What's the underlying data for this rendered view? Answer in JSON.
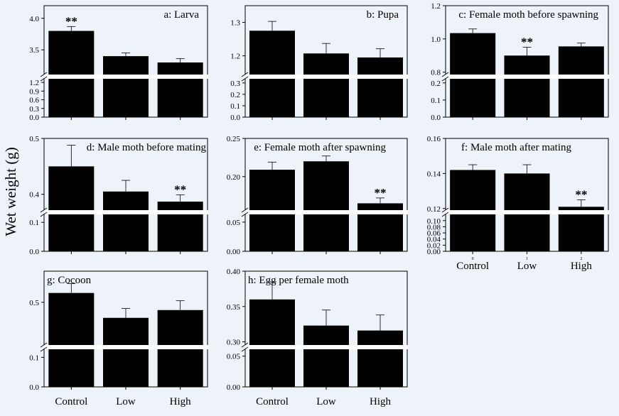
{
  "colors": {
    "background": "#eef2f9",
    "bar": "#000000",
    "break": "#ffffff"
  },
  "figure": {
    "ylabel": "Wet weight (g)"
  },
  "chart_data": [
    {
      "type": "bar",
      "title": "a: Larva",
      "categories": [
        "Control",
        "Low",
        "High"
      ],
      "values": [
        3.8,
        3.4,
        3.3
      ],
      "errors": [
        0.07,
        0.05,
        0.06
      ],
      "significance": [
        "**",
        "",
        ""
      ],
      "upper": {
        "ylim": [
          3.12,
          4.2
        ],
        "ticks": [
          3.5,
          4.0
        ],
        "tick_labels": [
          "3.5",
          "4.0"
        ]
      },
      "lower": {
        "ylim": [
          0,
          1.3
        ],
        "ticks": [
          0,
          0.3,
          0.6,
          0.9,
          1.2
        ],
        "tick_labels": [
          "0.0",
          "0.3",
          "0.6",
          "0.9",
          "1.2"
        ]
      },
      "show_category_labels": false
    },
    {
      "type": "bar",
      "title": "b: Pupa",
      "categories": [
        "Control",
        "Low",
        "High"
      ],
      "values": [
        1.275,
        1.207,
        1.195
      ],
      "errors": [
        0.028,
        0.03,
        0.026
      ],
      "significance": [
        "",
        "",
        ""
      ],
      "upper": {
        "ylim": [
          1.146,
          1.35
        ],
        "ticks": [
          1.2,
          1.3
        ],
        "tick_labels": [
          "1.2",
          "1.3"
        ]
      },
      "lower": {
        "ylim": [
          0,
          0.33
        ],
        "ticks": [
          0,
          0.1,
          0.2,
          0.3
        ],
        "tick_labels": [
          "0.0",
          "0.1",
          "0.2",
          "0.3"
        ]
      },
      "show_category_labels": false
    },
    {
      "type": "bar",
      "title": "c: Female moth before spawning",
      "categories": [
        "Control",
        "Low",
        "High"
      ],
      "values": [
        1.035,
        0.9,
        0.955
      ],
      "errors": [
        0.025,
        0.05,
        0.02
      ],
      "significance": [
        "",
        "**",
        ""
      ],
      "upper": {
        "ylim": [
          0.79,
          1.2
        ],
        "ticks": [
          0.8,
          1.0,
          1.2
        ],
        "tick_labels": [
          "0.8",
          "1.0",
          "1.2"
        ]
      },
      "lower": {
        "ylim": [
          0,
          0.22
        ],
        "ticks": [
          0,
          0.1,
          0.2
        ],
        "tick_labels": [
          "0.0",
          "0.1",
          "0.2"
        ]
      },
      "show_category_labels": false
    },
    {
      "type": "bar",
      "title": "d: Male moth before mating",
      "categories": [
        "Control",
        "Low",
        "High"
      ],
      "values": [
        0.45,
        0.405,
        0.387
      ],
      "errors": [
        0.038,
        0.02,
        0.012
      ],
      "significance": [
        "",
        "",
        "**"
      ],
      "upper": {
        "ylim": [
          0.373,
          0.5
        ],
        "ticks": [
          0.4,
          0.5
        ],
        "tick_labels": [
          "0.4",
          "0.5"
        ]
      },
      "lower": {
        "ylim": [
          0,
          0.125
        ],
        "ticks": [
          0,
          0.1
        ],
        "tick_labels": [
          "0.0",
          "0.1"
        ]
      },
      "show_category_labels": false
    },
    {
      "type": "bar",
      "title": "e: Female moth after spawning",
      "categories": [
        "Control",
        "Low",
        "High"
      ],
      "values": [
        0.209,
        0.22,
        0.165
      ],
      "errors": [
        0.01,
        0.007,
        0.007
      ],
      "significance": [
        "",
        "",
        "**"
      ],
      "upper": {
        "ylim": [
          0.157,
          0.25
        ],
        "ticks": [
          0.2,
          0.25
        ],
        "tick_labels": [
          "0.20",
          "0.25"
        ]
      },
      "lower": {
        "ylim": [
          0,
          0.062
        ],
        "ticks": [
          0,
          0.05
        ],
        "tick_labels": [
          "0.00",
          "0.05"
        ]
      },
      "show_category_labels": false
    },
    {
      "type": "bar",
      "title": "f: Male moth after mating",
      "categories": [
        "Control",
        "Low",
        "High"
      ],
      "tick_numbers": [
        "0",
        "1",
        "2"
      ],
      "values": [
        0.142,
        0.14,
        0.121
      ],
      "errors": [
        0.003,
        0.005,
        0.004
      ],
      "significance": [
        "",
        "",
        "**"
      ],
      "upper": {
        "ylim": [
          0.1195,
          0.16
        ],
        "ticks": [
          0.12,
          0.14,
          0.16
        ],
        "tick_labels": [
          "0.12",
          "0.14",
          "0.16"
        ]
      },
      "lower": {
        "ylim": [
          0,
          0.118
        ],
        "ticks": [
          0,
          0.02,
          0.04,
          0.06,
          0.08,
          0.1
        ],
        "tick_labels": [
          "0.00",
          "0.02",
          "0.04",
          "0.06",
          "0.08",
          "0.10"
        ]
      },
      "show_category_labels": true
    },
    {
      "type": "bar",
      "title": "g: Cocoon",
      "categories": [
        "Control",
        "Low",
        "High"
      ],
      "values": [
        0.56,
        0.4,
        0.45
      ],
      "errors": [
        0.06,
        0.06,
        0.06
      ],
      "significance": [
        "",
        "",
        ""
      ],
      "upper": {
        "ylim": [
          0.23,
          0.7
        ],
        "ticks": [
          0.5
        ],
        "tick_labels": [
          "0.5"
        ]
      },
      "lower": {
        "ylim": [
          0,
          0.125
        ],
        "ticks": [
          0,
          0.1
        ],
        "tick_labels": [
          "0.0",
          "0.1"
        ]
      },
      "show_category_labels": true
    },
    {
      "type": "bar",
      "title": "h: Egg per female moth",
      "categories": [
        "Control",
        "Low",
        "High"
      ],
      "values": [
        0.36,
        0.323,
        0.316
      ],
      "errors": [
        0.025,
        0.022,
        0.022
      ],
      "significance": [
        "",
        "",
        ""
      ],
      "upper": {
        "ylim": [
          0.2965,
          0.4
        ],
        "ticks": [
          0.3,
          0.35,
          0.4
        ],
        "tick_labels": [
          "0.30",
          "0.35",
          "0.40"
        ]
      },
      "lower": {
        "ylim": [
          0,
          0.06
        ],
        "ticks": [
          0,
          0.05
        ],
        "tick_labels": [
          "0.00",
          "0.05"
        ]
      },
      "show_category_labels": true
    }
  ]
}
